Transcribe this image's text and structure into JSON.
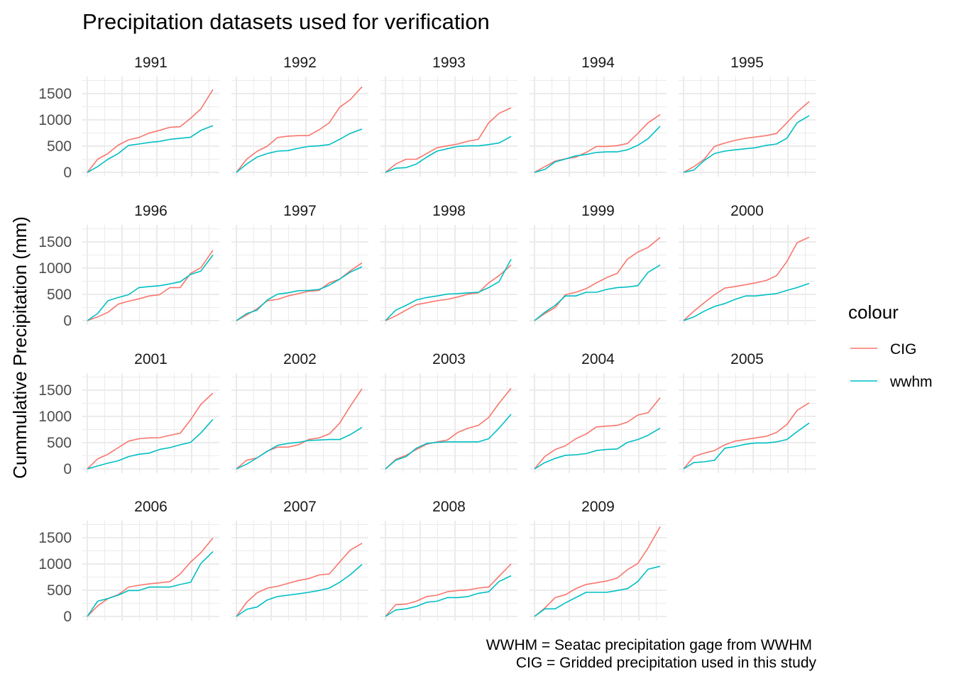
{
  "chart_data": {
    "type": "line",
    "title": "Precipitation datasets used for verification",
    "xlabel": "",
    "ylabel": "Cummulative Precipitation (mm)",
    "ylim": [
      -85,
      1820
    ],
    "yticks": [
      0,
      500,
      1000,
      1500
    ],
    "grid": true,
    "facet_by": "year",
    "legend": {
      "title": "colour",
      "position": "right",
      "entries": [
        {
          "name": "CIG",
          "color": "#F8766D"
        },
        {
          "name": "wwhm",
          "color": "#00BFC4"
        }
      ]
    },
    "caption": [
      "WWHM = Seatac precipitation gage from WWHM",
      "CIG = Gridded precipitation used in this study"
    ],
    "x": [
      0,
      30,
      60,
      90,
      120,
      150,
      180,
      210,
      240,
      270,
      300,
      330,
      365
    ],
    "panels": [
      {
        "year": "1991",
        "CIG": [
          0,
          250,
          360,
          520,
          620,
          665,
          750,
          800,
          860,
          870,
          1030,
          1210,
          1580
        ],
        "wwhm": [
          0,
          110,
          250,
          360,
          515,
          540,
          570,
          590,
          630,
          650,
          670,
          800,
          890
        ]
      },
      {
        "year": "1992",
        "CIG": [
          0,
          250,
          400,
          500,
          665,
          690,
          700,
          700,
          810,
          945,
          1240,
          1380,
          1630
        ],
        "wwhm": [
          0,
          160,
          290,
          360,
          405,
          415,
          460,
          495,
          505,
          530,
          630,
          740,
          825
        ]
      },
      {
        "year": "1993",
        "CIG": [
          0,
          160,
          250,
          250,
          360,
          470,
          505,
          540,
          595,
          630,
          945,
          1125,
          1230
        ],
        "wwhm": [
          0,
          80,
          90,
          160,
          290,
          405,
          450,
          495,
          505,
          505,
          530,
          560,
          685
        ]
      },
      {
        "year": "1994",
        "CIG": [
          0,
          110,
          215,
          260,
          290,
          380,
          495,
          495,
          510,
          550,
          740,
          945,
          1100
        ],
        "wwhm": [
          0,
          55,
          200,
          255,
          315,
          340,
          380,
          390,
          390,
          430,
          515,
          640,
          880
        ]
      },
      {
        "year": "1995",
        "CIG": [
          0,
          110,
          250,
          495,
          560,
          610,
          650,
          675,
          700,
          740,
          945,
          1150,
          1350
        ],
        "wwhm": [
          0,
          45,
          225,
          360,
          405,
          430,
          450,
          470,
          515,
          540,
          650,
          945,
          1080
        ]
      },
      {
        "year": "1996",
        "CIG": [
          0,
          70,
          160,
          315,
          370,
          415,
          470,
          495,
          630,
          630,
          900,
          1010,
          1340
        ],
        "wwhm": [
          0,
          135,
          380,
          440,
          495,
          630,
          650,
          665,
          700,
          740,
          880,
          945,
          1250
        ]
      },
      {
        "year": "1997",
        "CIG": [
          0,
          110,
          225,
          380,
          405,
          470,
          515,
          560,
          575,
          720,
          790,
          945,
          1100
        ],
        "wwhm": [
          0,
          135,
          200,
          395,
          505,
          530,
          570,
          575,
          595,
          675,
          790,
          920,
          1025
        ]
      },
      {
        "year": "1998",
        "CIG": [
          0,
          90,
          200,
          305,
          340,
          380,
          405,
          450,
          505,
          530,
          720,
          855,
          1060
        ],
        "wwhm": [
          0,
          200,
          290,
          395,
          440,
          470,
          505,
          515,
          530,
          540,
          630,
          740,
          1170
        ]
      },
      {
        "year": "1999",
        "CIG": [
          0,
          135,
          250,
          495,
          540,
          610,
          720,
          820,
          900,
          1170,
          1305,
          1395,
          1585
        ],
        "wwhm": [
          0,
          160,
          290,
          470,
          470,
          540,
          540,
          595,
          630,
          640,
          665,
          920,
          1060
        ]
      },
      {
        "year": "2000",
        "CIG": [
          0,
          180,
          340,
          495,
          620,
          650,
          685,
          720,
          765,
          855,
          1125,
          1485,
          1590
        ],
        "wwhm": [
          0,
          70,
          180,
          270,
          325,
          405,
          470,
          470,
          495,
          515,
          575,
          630,
          710
        ]
      },
      {
        "year": "2001",
        "CIG": [
          0,
          190,
          280,
          405,
          530,
          575,
          590,
          595,
          640,
          680,
          935,
          1230,
          1445
        ],
        "wwhm": [
          0,
          55,
          110,
          155,
          235,
          280,
          300,
          370,
          405,
          460,
          505,
          685,
          945
        ]
      },
      {
        "year": "2002",
        "CIG": [
          0,
          165,
          210,
          340,
          415,
          415,
          460,
          560,
          590,
          665,
          870,
          1185,
          1525
        ],
        "wwhm": [
          0,
          90,
          210,
          335,
          450,
          485,
          505,
          540,
          550,
          560,
          560,
          650,
          790
        ]
      },
      {
        "year": "2003",
        "CIG": [
          0,
          180,
          260,
          370,
          470,
          515,
          550,
          695,
          775,
          830,
          980,
          1250,
          1535
        ],
        "wwhm": [
          0,
          165,
          235,
          395,
          485,
          505,
          515,
          515,
          515,
          515,
          575,
          775,
          1040
        ]
      },
      {
        "year": "2004",
        "CIG": [
          0,
          235,
          370,
          440,
          575,
          665,
          800,
          815,
          830,
          890,
          1025,
          1070,
          1355
        ],
        "wwhm": [
          0,
          120,
          200,
          260,
          270,
          290,
          350,
          370,
          380,
          505,
          560,
          640,
          775
        ]
      },
      {
        "year": "2005",
        "CIG": [
          0,
          235,
          300,
          350,
          460,
          530,
          560,
          590,
          620,
          695,
          845,
          1115,
          1260
        ],
        "wwhm": [
          0,
          120,
          135,
          165,
          395,
          425,
          470,
          495,
          495,
          515,
          560,
          710,
          875
        ]
      },
      {
        "year": "2006",
        "CIG": [
          0,
          200,
          340,
          415,
          560,
          595,
          620,
          640,
          665,
          810,
          1035,
          1215,
          1495
        ],
        "wwhm": [
          0,
          290,
          340,
          405,
          495,
          495,
          560,
          560,
          560,
          610,
          650,
          1010,
          1235
        ]
      },
      {
        "year": "2007",
        "CIG": [
          0,
          270,
          450,
          540,
          575,
          630,
          685,
          720,
          790,
          810,
          1035,
          1260,
          1395
        ],
        "wwhm": [
          0,
          135,
          180,
          315,
          380,
          405,
          430,
          460,
          495,
          540,
          650,
          790,
          990
        ]
      },
      {
        "year": "2008",
        "CIG": [
          0,
          225,
          235,
          290,
          380,
          405,
          470,
          495,
          505,
          540,
          560,
          765,
          1000
        ],
        "wwhm": [
          0,
          125,
          145,
          190,
          270,
          290,
          360,
          360,
          380,
          440,
          470,
          665,
          775
        ]
      },
      {
        "year": "2009",
        "CIG": [
          0,
          160,
          360,
          415,
          530,
          610,
          640,
          675,
          730,
          890,
          1010,
          1305,
          1710
        ],
        "wwhm": [
          0,
          145,
          145,
          260,
          360,
          460,
          460,
          460,
          495,
          530,
          665,
          900,
          955
        ]
      }
    ]
  }
}
